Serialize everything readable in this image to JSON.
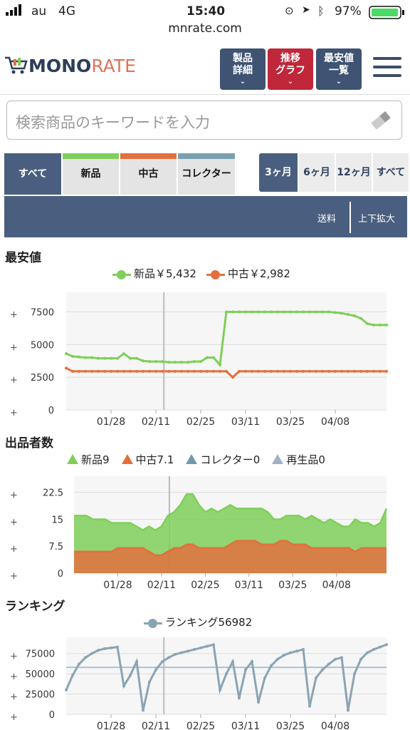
{
  "status": {
    "carrier": "au",
    "network": "4G",
    "time": "15:40",
    "battery": "97%"
  },
  "url": "mnrate.com",
  "header": {
    "logo_a": "MONO",
    "logo_b": "RATE",
    "buttons": [
      {
        "line1": "製品",
        "line2": "詳細",
        "color": "#3f5372"
      },
      {
        "line1": "推移",
        "line2": "グラフ",
        "color": "#c0273a"
      },
      {
        "line1": "最安値",
        "line2": "一覧",
        "color": "#3f5372"
      }
    ]
  },
  "search": {
    "placeholder": "検索商品のキーワードを入力"
  },
  "condition_tabs": [
    {
      "label": "すべて",
      "active": true,
      "bar": ""
    },
    {
      "label": "新品",
      "active": false,
      "bar": "#7fcf5a"
    },
    {
      "label": "中古",
      "active": false,
      "bar": "#e2703e"
    },
    {
      "label": "コレクター",
      "active": false,
      "bar": "#7aa0b0"
    }
  ],
  "period_tabs": [
    {
      "label": "3ヶ月",
      "active": true
    },
    {
      "label": "6ヶ月",
      "active": false
    },
    {
      "label": "12ヶ月",
      "active": false
    },
    {
      "label": "すべて",
      "active": false
    }
  ],
  "options": {
    "shipping": "送料",
    "zoom": "上下拡大"
  },
  "sections": {
    "price": "最安値",
    "sellers": "出品者数",
    "ranking": "ランキング"
  },
  "colors": {
    "new": "#7fcf5a",
    "used": "#e2703e",
    "collector": "#6f9aab",
    "refurb": "#a3afc4",
    "rank": "#8aa4b4",
    "navy": "#4a5f7f"
  },
  "price_legend": [
    {
      "label": "新品￥5,432",
      "color": "#7fcf5a"
    },
    {
      "label": "中古￥2,982",
      "color": "#e2703e"
    }
  ],
  "seller_legend": [
    {
      "label": "新品9",
      "color": "#7fcf5a"
    },
    {
      "label": "中古7.1",
      "color": "#e2703e"
    },
    {
      "label": "コレクター0",
      "color": "#6f9aab"
    },
    {
      "label": "再生品0",
      "color": "#a3afc4"
    }
  ],
  "rank_legend": [
    {
      "label": "ランキング56982",
      "color": "#8aa4b4"
    }
  ],
  "chart_data": [
    {
      "type": "line",
      "title": "最安値",
      "x_labels": [
        "01/28",
        "02/11",
        "02/25",
        "03/11",
        "03/25",
        "04/08"
      ],
      "y_ticks": [
        "0",
        "2500",
        "5000",
        "7500"
      ],
      "ylim": [
        0,
        9000
      ],
      "x": [
        0,
        2,
        4,
        6,
        8,
        10,
        12,
        14,
        16,
        18,
        20,
        22,
        24,
        26,
        28,
        30,
        32,
        34,
        36,
        38,
        40,
        42,
        44,
        46,
        48,
        50,
        52,
        54,
        56,
        58,
        60,
        62,
        64,
        66,
        68,
        70,
        72,
        74,
        76,
        78,
        80,
        82,
        84,
        86,
        88,
        90,
        92,
        94,
        96,
        98,
        100
      ],
      "series": [
        {
          "name": "新品",
          "color": "#7fcf5a",
          "values": [
            4300,
            4100,
            4050,
            4000,
            4000,
            3950,
            3950,
            3950,
            3950,
            4300,
            3950,
            3950,
            3750,
            3700,
            3700,
            3700,
            3650,
            3650,
            3650,
            3650,
            3700,
            3700,
            4000,
            4000,
            3450,
            7500,
            7500,
            7500,
            7500,
            7500,
            7500,
            7500,
            7500,
            7500,
            7500,
            7500,
            7500,
            7500,
            7500,
            7500,
            7500,
            7500,
            7450,
            7400,
            7300,
            7200,
            7000,
            6600,
            6500,
            6500,
            6500
          ]
        },
        {
          "name": "中古",
          "color": "#e2703e",
          "values": [
            3200,
            2950,
            2950,
            2950,
            2950,
            2950,
            2950,
            2950,
            2950,
            2950,
            2950,
            2950,
            2950,
            2950,
            2950,
            2950,
            2950,
            2950,
            2950,
            2950,
            2950,
            2950,
            2950,
            2950,
            2950,
            2950,
            2500,
            2950,
            2950,
            2950,
            2950,
            2950,
            2950,
            2950,
            2950,
            2950,
            2950,
            2950,
            2950,
            2950,
            2950,
            2950,
            2950,
            2950,
            2950,
            2950,
            2950,
            2950,
            2950,
            2950,
            2950
          ]
        }
      ]
    },
    {
      "type": "area",
      "title": "出品者数",
      "x_labels": [
        "01/28",
        "02/11",
        "02/25",
        "03/11",
        "03/25",
        "04/08"
      ],
      "y_ticks": [
        "0",
        "7.5",
        "15",
        "22.5"
      ],
      "ylim": [
        0,
        27
      ],
      "x": [
        0,
        2,
        4,
        6,
        8,
        10,
        12,
        14,
        16,
        18,
        20,
        22,
        24,
        26,
        28,
        30,
        32,
        34,
        36,
        38,
        40,
        42,
        44,
        46,
        48,
        50,
        52,
        54,
        56,
        58,
        60,
        62,
        64,
        66,
        68,
        70,
        72,
        74,
        76,
        78,
        80,
        82,
        84,
        86,
        88,
        90,
        92,
        94,
        96,
        98,
        100
      ],
      "series": [
        {
          "name": "新品",
          "color": "#7fcf5a",
          "values": [
            16,
            16,
            16,
            15,
            15,
            15,
            14,
            14,
            14,
            14,
            13,
            12,
            13,
            12,
            13,
            16,
            17,
            19,
            22,
            22,
            19,
            17,
            18,
            17,
            18,
            19,
            18,
            18,
            18,
            18,
            18,
            17,
            15,
            15,
            16,
            16,
            16,
            15,
            16,
            15,
            14,
            15,
            14,
            13,
            13,
            15,
            14,
            14,
            13,
            14,
            18
          ]
        },
        {
          "name": "中古",
          "color": "#e2703e",
          "values": [
            6,
            6,
            6,
            6,
            6,
            6,
            6,
            7,
            7,
            7,
            7,
            7,
            6,
            5,
            5,
            6,
            7,
            7,
            8,
            8,
            7,
            7,
            7,
            7,
            7,
            8,
            9,
            9,
            9,
            9,
            8,
            8,
            8,
            9,
            9,
            8,
            8,
            8,
            7,
            7,
            7,
            7,
            7,
            7,
            7,
            6,
            7,
            7,
            7,
            7,
            7
          ]
        }
      ]
    },
    {
      "type": "line",
      "title": "ランキング",
      "x_labels": [
        "01/28",
        "02/11",
        "02/25",
        "03/11",
        "03/25",
        "04/08"
      ],
      "y_ticks": [
        "0",
        "25000",
        "50000",
        "75000"
      ],
      "ylim": [
        0,
        95000
      ],
      "x": [
        0,
        2,
        4,
        6,
        8,
        10,
        12,
        14,
        16,
        18,
        20,
        22,
        24,
        26,
        28,
        30,
        32,
        34,
        36,
        38,
        40,
        42,
        44,
        46,
        48,
        50,
        52,
        54,
        56,
        58,
        60,
        62,
        64,
        66,
        68,
        70,
        72,
        74,
        76,
        78,
        80,
        82,
        84,
        86,
        88,
        90,
        92,
        94,
        96,
        98,
        100
      ],
      "average": 58000,
      "series": [
        {
          "name": "ランキング",
          "color": "#8aa4b4",
          "values": [
            30000,
            48000,
            62000,
            70000,
            75000,
            79000,
            81000,
            82000,
            83000,
            35000,
            48000,
            65000,
            5000,
            40000,
            55000,
            65000,
            70000,
            74000,
            76000,
            78000,
            80000,
            82000,
            84000,
            86000,
            30000,
            50000,
            65000,
            20000,
            55000,
            65000,
            15000,
            45000,
            60000,
            68000,
            73000,
            76000,
            78000,
            80000,
            10000,
            45000,
            55000,
            62000,
            68000,
            70000,
            5000,
            50000,
            68000,
            76000,
            80000,
            83000,
            86000
          ]
        }
      ]
    }
  ]
}
